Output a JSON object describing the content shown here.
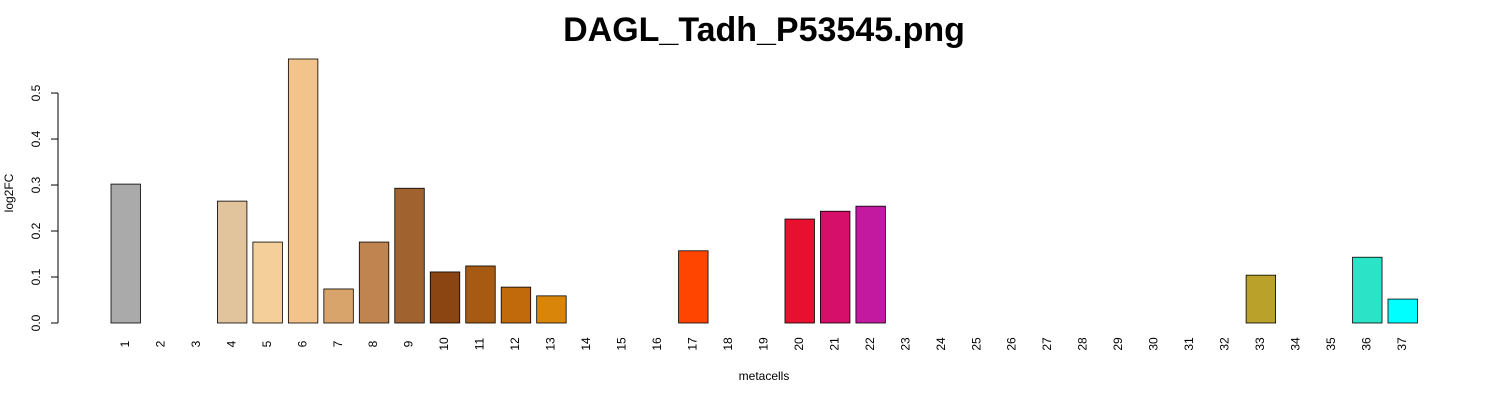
{
  "chart_data": {
    "type": "bar",
    "title": "DAGL_Tadh_P53545.png",
    "x_label": "metacells",
    "y_label": "log2FC",
    "categories": [
      "1",
      "2",
      "3",
      "4",
      "5",
      "6",
      "7",
      "8",
      "9",
      "10",
      "11",
      "12",
      "13",
      "14",
      "15",
      "16",
      "17",
      "18",
      "19",
      "20",
      "21",
      "22",
      "23",
      "24",
      "25",
      "26",
      "27",
      "28",
      "29",
      "30",
      "31",
      "32",
      "33",
      "34",
      "35",
      "36",
      "37"
    ],
    "values": [
      0.302,
      0,
      0,
      0.265,
      0.176,
      0.574,
      0.074,
      0.176,
      0.293,
      0.111,
      0.124,
      0.078,
      0.059,
      0,
      0,
      0,
      0.157,
      0,
      0,
      0.226,
      0.243,
      0.254,
      0,
      0,
      0,
      0,
      0,
      0,
      0,
      0,
      0,
      0,
      0.104,
      0,
      0,
      0.143,
      0.052
    ],
    "colors": [
      "#aaaaaa",
      "#bbbbbb",
      "#cccccc",
      "#e2c49c",
      "#f5cf9a",
      "#f2c38a",
      "#d9a36c",
      "#bf8450",
      "#a0622f",
      "#8b4513",
      "#a65a12",
      "#c06a0c",
      "#d9850a",
      "#e09a20",
      "#f0a030",
      "#ff7f00",
      "#ff4500",
      "#ff2a10",
      "#f01520",
      "#e8102f",
      "#d6106a",
      "#c219a0",
      "#a020c0",
      "#8030d0",
      "#6040e0",
      "#4050e0",
      "#3070e0",
      "#2090e0",
      "#10a0d0",
      "#20b0b0",
      "#40b090",
      "#80a060",
      "#b9a12a",
      "#90c040",
      "#50d090",
      "#2be3c6",
      "#00ffff"
    ],
    "ylim": [
      0,
      0.574
    ],
    "yticks": [
      {
        "value": 0,
        "label": "0.0"
      },
      0.1,
      0.2,
      0.3,
      0.4,
      0.5
    ]
  }
}
